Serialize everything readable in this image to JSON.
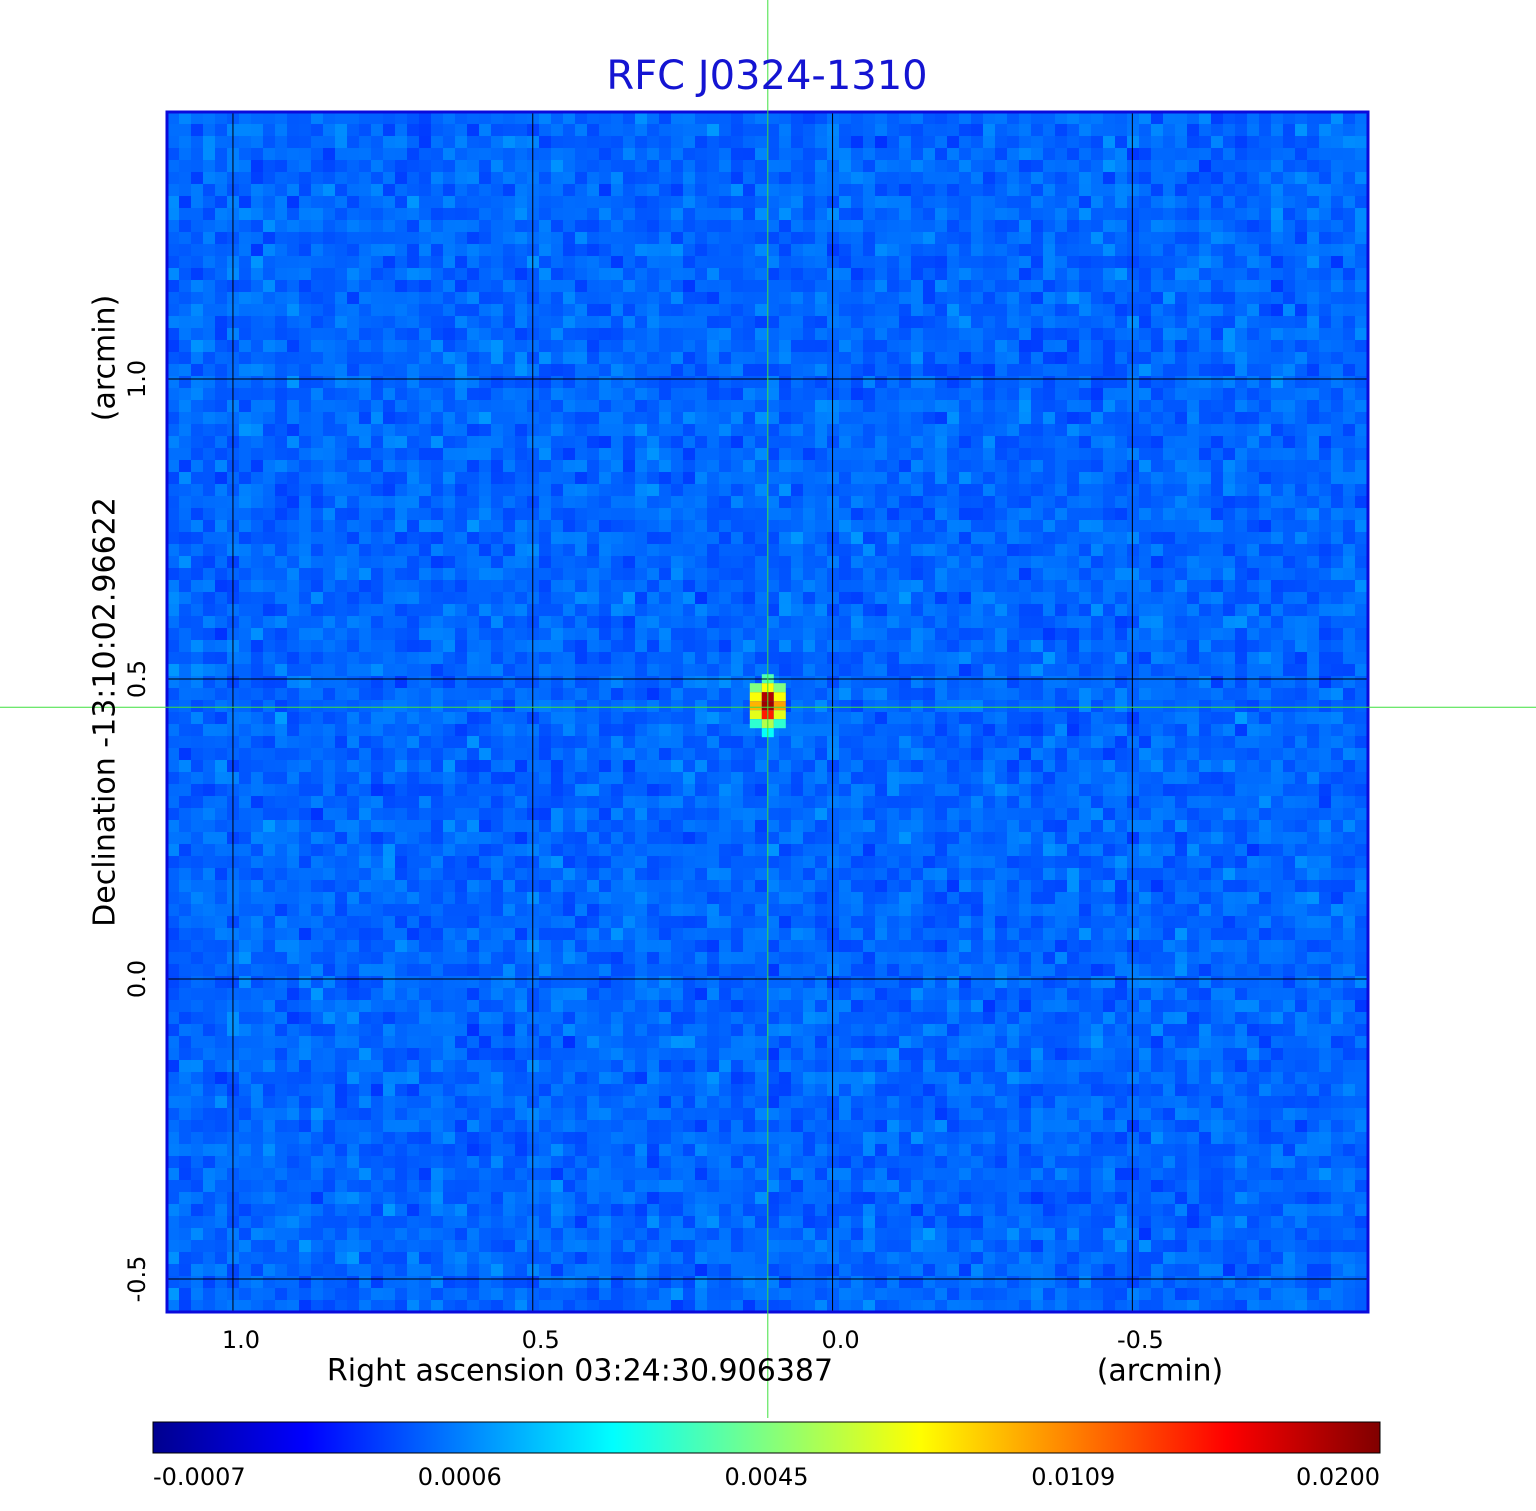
{
  "chart_data": {
    "type": "image",
    "title": "RFC J0324-1310",
    "x_label": "Right ascension  03:24:30.906387",
    "x_unit": "(arcmin)",
    "y_label": "Declination  -13:10:02.96622",
    "y_unit": "(arcmin)",
    "xlim": [
      1.11,
      -0.893
    ],
    "ylim": [
      -0.555,
      1.445
    ],
    "xticks": [
      {
        "value": 1,
        "label": "1.0"
      },
      0.5,
      {
        "value": 0,
        "label": "0.0"
      },
      -0.5
    ],
    "yticks": [
      -0.5,
      {
        "value": 0,
        "label": "0.0"
      },
      0.5,
      {
        "value": 1,
        "label": "1.0"
      }
    ],
    "grid": true,
    "source": {
      "x": 0.108,
      "y": 0.453
    },
    "colormap": "jet",
    "colorbar_ticks": [
      -0.0007,
      0.0006,
      0.0045,
      0.0109,
      {
        "value": 0.02,
        "label": "0.0200"
      }
    ]
  }
}
